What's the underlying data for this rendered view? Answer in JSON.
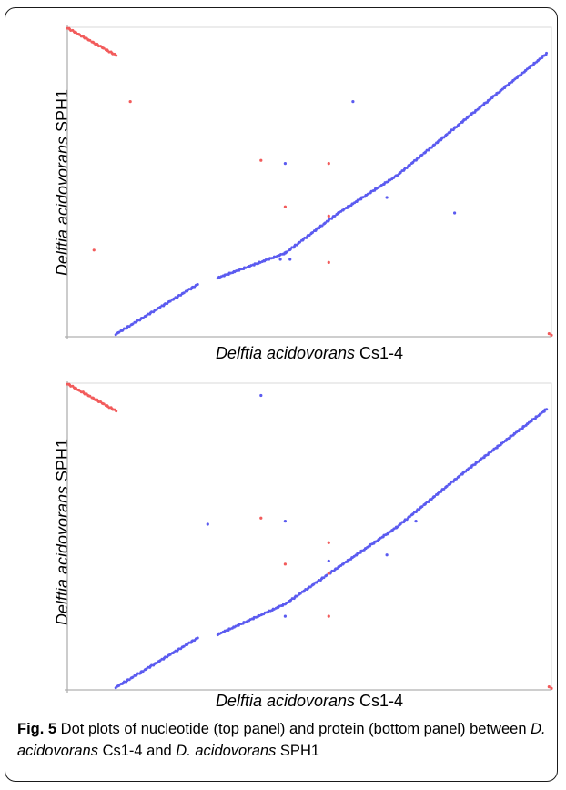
{
  "colors": {
    "forward": "#5b5bf0",
    "reverse": "#f25b5b",
    "axis": "#b0b0b0"
  },
  "panels": [
    {
      "ylabel_genus": "Delftia acidovorans",
      "ylabel_strain": "SPH1",
      "xlabel_genus": "Delftia acidovorans",
      "xlabel_strain": "Cs1-4",
      "chart_data": {
        "type": "scatter",
        "xlim": [
          0,
          1
        ],
        "ylim": [
          0,
          1
        ],
        "series": [
          {
            "color": "blue",
            "values": [],
            "segments": [
              [
                [
                  0.1,
                  0.008
                ],
                [
                  0.27,
                  0.17
                ]
              ],
              [
                [
                  0.31,
                  0.19
                ],
                [
                  0.45,
                  0.27
                ]
              ],
              [
                [
                  0.45,
                  0.27
                ],
                [
                  0.56,
                  0.4
                ]
              ],
              [
                [
                  0.56,
                  0.4
                ],
                [
                  0.68,
                  0.52
                ]
              ],
              [
                [
                  0.68,
                  0.52
                ],
                [
                  0.82,
                  0.7
                ]
              ],
              [
                [
                  0.82,
                  0.7
                ],
                [
                  0.99,
                  0.915
                ]
              ]
            ],
            "points": [
              [
                0.59,
                0.76
              ],
              [
                0.45,
                0.56
              ],
              [
                0.66,
                0.45
              ],
              [
                0.8,
                0.4
              ],
              [
                0.44,
                0.25
              ],
              [
                0.46,
                0.25
              ]
            ]
          },
          {
            "color": "red",
            "values": [],
            "segments": [
              [
                [
                  0.0,
                  0.998
                ],
                [
                  0.1,
                  0.91
                ]
              ]
            ],
            "points": [
              [
                0.13,
                0.76
              ],
              [
                0.055,
                0.28
              ],
              [
                0.4,
                0.57
              ],
              [
                0.54,
                0.56
              ],
              [
                0.45,
                0.42
              ],
              [
                0.54,
                0.39
              ],
              [
                0.54,
                0.24
              ],
              [
                0.995,
                0.01
              ],
              [
                1.0,
                0.005
              ]
            ]
          }
        ]
      }
    },
    {
      "ylabel_genus": "Delftia acidovorans",
      "ylabel_strain": "SPH1",
      "xlabel_genus": "Delftia acidovorans",
      "xlabel_strain": "Cs1-4",
      "chart_data": {
        "type": "scatter",
        "xlim": [
          0,
          1
        ],
        "ylim": [
          0,
          1
        ],
        "series": [
          {
            "color": "blue",
            "values": [],
            "segments": [
              [
                [
                  0.1,
                  0.008
                ],
                [
                  0.27,
                  0.17
                ]
              ],
              [
                [
                  0.31,
                  0.18
                ],
                [
                  0.45,
                  0.28
                ]
              ],
              [
                [
                  0.45,
                  0.28
                ],
                [
                  0.56,
                  0.4
                ]
              ],
              [
                [
                  0.56,
                  0.4
                ],
                [
                  0.68,
                  0.53
                ]
              ],
              [
                [
                  0.68,
                  0.53
                ],
                [
                  0.82,
                  0.71
                ]
              ],
              [
                [
                  0.82,
                  0.71
                ],
                [
                  0.99,
                  0.915
                ]
              ]
            ],
            "points": [
              [
                0.4,
                0.96
              ],
              [
                0.29,
                0.54
              ],
              [
                0.45,
                0.55
              ],
              [
                0.72,
                0.55
              ],
              [
                0.66,
                0.44
              ],
              [
                0.45,
                0.24
              ],
              [
                0.54,
                0.42
              ]
            ]
          },
          {
            "color": "red",
            "values": [],
            "segments": [
              [
                [
                  0.0,
                  0.998
                ],
                [
                  0.1,
                  0.91
                ]
              ]
            ],
            "points": [
              [
                0.4,
                0.56
              ],
              [
                0.54,
                0.48
              ],
              [
                0.45,
                0.41
              ],
              [
                0.54,
                0.38
              ],
              [
                0.54,
                0.24
              ],
              [
                0.995,
                0.01
              ],
              [
                1.0,
                0.005
              ]
            ]
          }
        ]
      }
    }
  ],
  "caption": {
    "label": "Fig. 5",
    "text_1": " Dot plots of nucleotide (top panel) and protein (bottom panel) between ",
    "sp1_genus": "D. acidovorans",
    "sp1_strain": " Cs1-4 and ",
    "sp2_genus": "D. acidovorans",
    "sp2_strain": " SPH1"
  }
}
